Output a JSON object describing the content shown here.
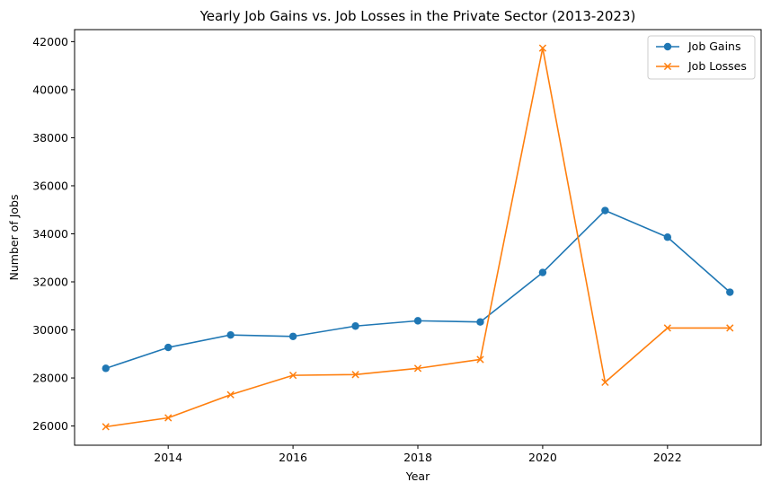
{
  "chart_data": {
    "type": "line",
    "title": "Yearly Job Gains vs. Job Losses in the Private Sector (2013-2023)",
    "xlabel": "Year",
    "ylabel": "Number of Jobs",
    "x": [
      2013,
      2014,
      2015,
      2016,
      2017,
      2018,
      2019,
      2020,
      2021,
      2022,
      2023
    ],
    "xlim": [
      2012.5,
      2023.5
    ],
    "ylim": [
      25200,
      42500
    ],
    "xticks": [
      2014,
      2016,
      2018,
      2020,
      2022
    ],
    "yticks": [
      26000,
      28000,
      30000,
      32000,
      34000,
      36000,
      38000,
      40000,
      42000
    ],
    "grid": false,
    "legend_position": "top-right",
    "series": [
      {
        "name": "Job Gains",
        "color": "#1f77b4",
        "marker": "circle",
        "values": [
          28400,
          29270,
          29790,
          29730,
          30160,
          30380,
          30330,
          32390,
          34970,
          33860,
          31570
        ]
      },
      {
        "name": "Job Losses",
        "color": "#ff7f0e",
        "marker": "x",
        "values": [
          25970,
          26340,
          27300,
          28110,
          28140,
          28400,
          28770,
          41730,
          27820,
          30080,
          30080
        ]
      }
    ]
  }
}
